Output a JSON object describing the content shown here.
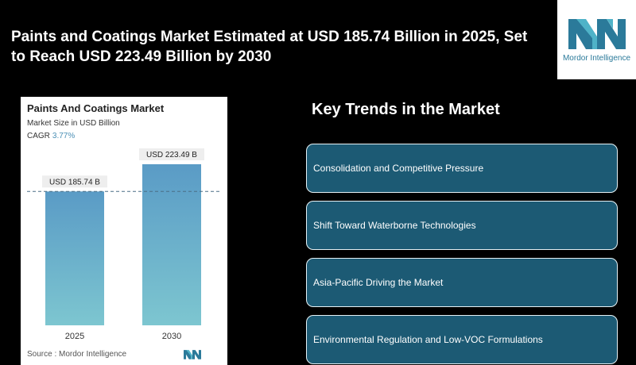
{
  "headline": "Paints and Coatings Market Estimated at USD 185.74 Billion in 2025, Set to Reach USD 223.49 Billion by 2030",
  "brand": {
    "name": "Mordor Intelligence",
    "color": "#2b7a9a",
    "accent": "#4fb3c8"
  },
  "card": {
    "title": "Paints And Coatings Market",
    "subtitle": "Market Size in USD Billion",
    "cagr_label": "CAGR",
    "cagr_value": "3.77%",
    "source": "Source : Mordor Intelligence"
  },
  "chart_data": {
    "type": "bar",
    "categories": [
      "2025",
      "2030"
    ],
    "values": [
      185.74,
      223.49
    ],
    "data_labels": [
      "USD 185.74 B",
      "USD 223.49 B"
    ],
    "title": "Paints And Coatings Market",
    "subtitle": "Market Size in USD Billion",
    "ylabel": "",
    "xlabel": "",
    "ylim": [
      0,
      240
    ],
    "gridlines": false,
    "reference_line": 185.74,
    "bar_gradient": [
      "#5a9bc6",
      "#7dc6d0"
    ]
  },
  "trends": {
    "title": "Key Trends in the Market",
    "items": [
      "Consolidation and Competitive Pressure",
      "Shift Toward Waterborne Technologies",
      "Asia-Pacific Driving the Market",
      "Environmental Regulation and Low-VOC Formulations"
    ]
  }
}
